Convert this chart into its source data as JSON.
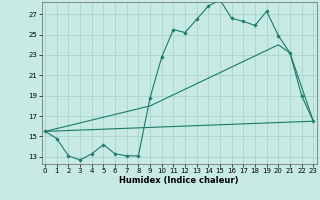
{
  "title": "",
  "xlabel": "Humidex (Indice chaleur)",
  "ylabel": "",
  "bg_color": "#c8eae4",
  "grid_color": "#a8d4cc",
  "line_color": "#1a7a6a",
  "x_ticks": [
    0,
    1,
    2,
    3,
    4,
    5,
    6,
    7,
    8,
    9,
    10,
    11,
    12,
    13,
    14,
    15,
    16,
    17,
    18,
    19,
    20,
    21,
    22,
    23
  ],
  "y_ticks": [
    13,
    15,
    17,
    19,
    21,
    23,
    25,
    27
  ],
  "xlim": [
    -0.3,
    23.3
  ],
  "ylim": [
    12.3,
    28.2
  ],
  "series1_x": [
    0,
    1,
    2,
    3,
    4,
    5,
    6,
    7,
    8,
    9,
    10,
    11,
    12,
    13,
    14,
    15,
    16,
    17,
    18,
    19,
    20,
    21,
    22,
    23
  ],
  "series1_y": [
    15.5,
    14.8,
    13.1,
    12.7,
    13.3,
    14.2,
    13.3,
    13.1,
    13.1,
    18.8,
    22.8,
    25.5,
    25.2,
    26.5,
    27.8,
    28.4,
    26.6,
    26.3,
    25.9,
    27.3,
    24.9,
    23.2,
    19.0,
    16.5
  ],
  "series2_x": [
    0,
    23
  ],
  "series2_y": [
    15.5,
    16.5
  ],
  "series3_x": [
    0,
    9,
    20,
    21,
    23
  ],
  "series3_y": [
    15.5,
    18.0,
    24.0,
    23.2,
    16.5
  ]
}
